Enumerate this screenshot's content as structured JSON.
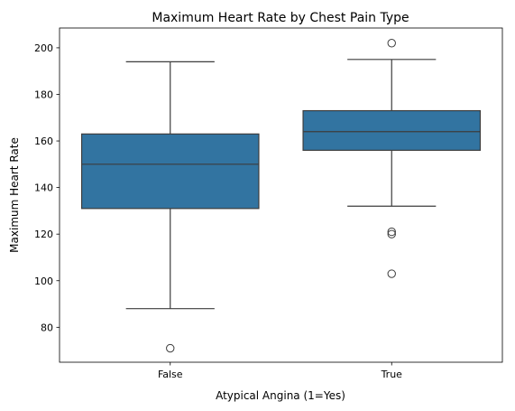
{
  "chart_data": {
    "type": "box",
    "title": "Maximum Heart Rate by Chest Pain Type",
    "xlabel": "Atypical Angina (1=Yes)",
    "ylabel": "Maximum Heart Rate",
    "categories": [
      "False",
      "True"
    ],
    "ylim": [
      65,
      208.5
    ],
    "yticks": [
      80,
      100,
      120,
      140,
      160,
      180,
      200
    ],
    "grid": false,
    "box_color": "#3274a1",
    "line_color": "#3d3d3d",
    "boxes": [
      {
        "category": "False",
        "whisker_low": 88,
        "q1": 131,
        "median": 150,
        "q3": 163,
        "whisker_high": 194,
        "outliers": [
          71
        ]
      },
      {
        "category": "True",
        "whisker_low": 132,
        "q1": 156,
        "median": 164,
        "q3": 173,
        "whisker_high": 195,
        "outliers": [
          202,
          121,
          120,
          103
        ]
      }
    ]
  }
}
